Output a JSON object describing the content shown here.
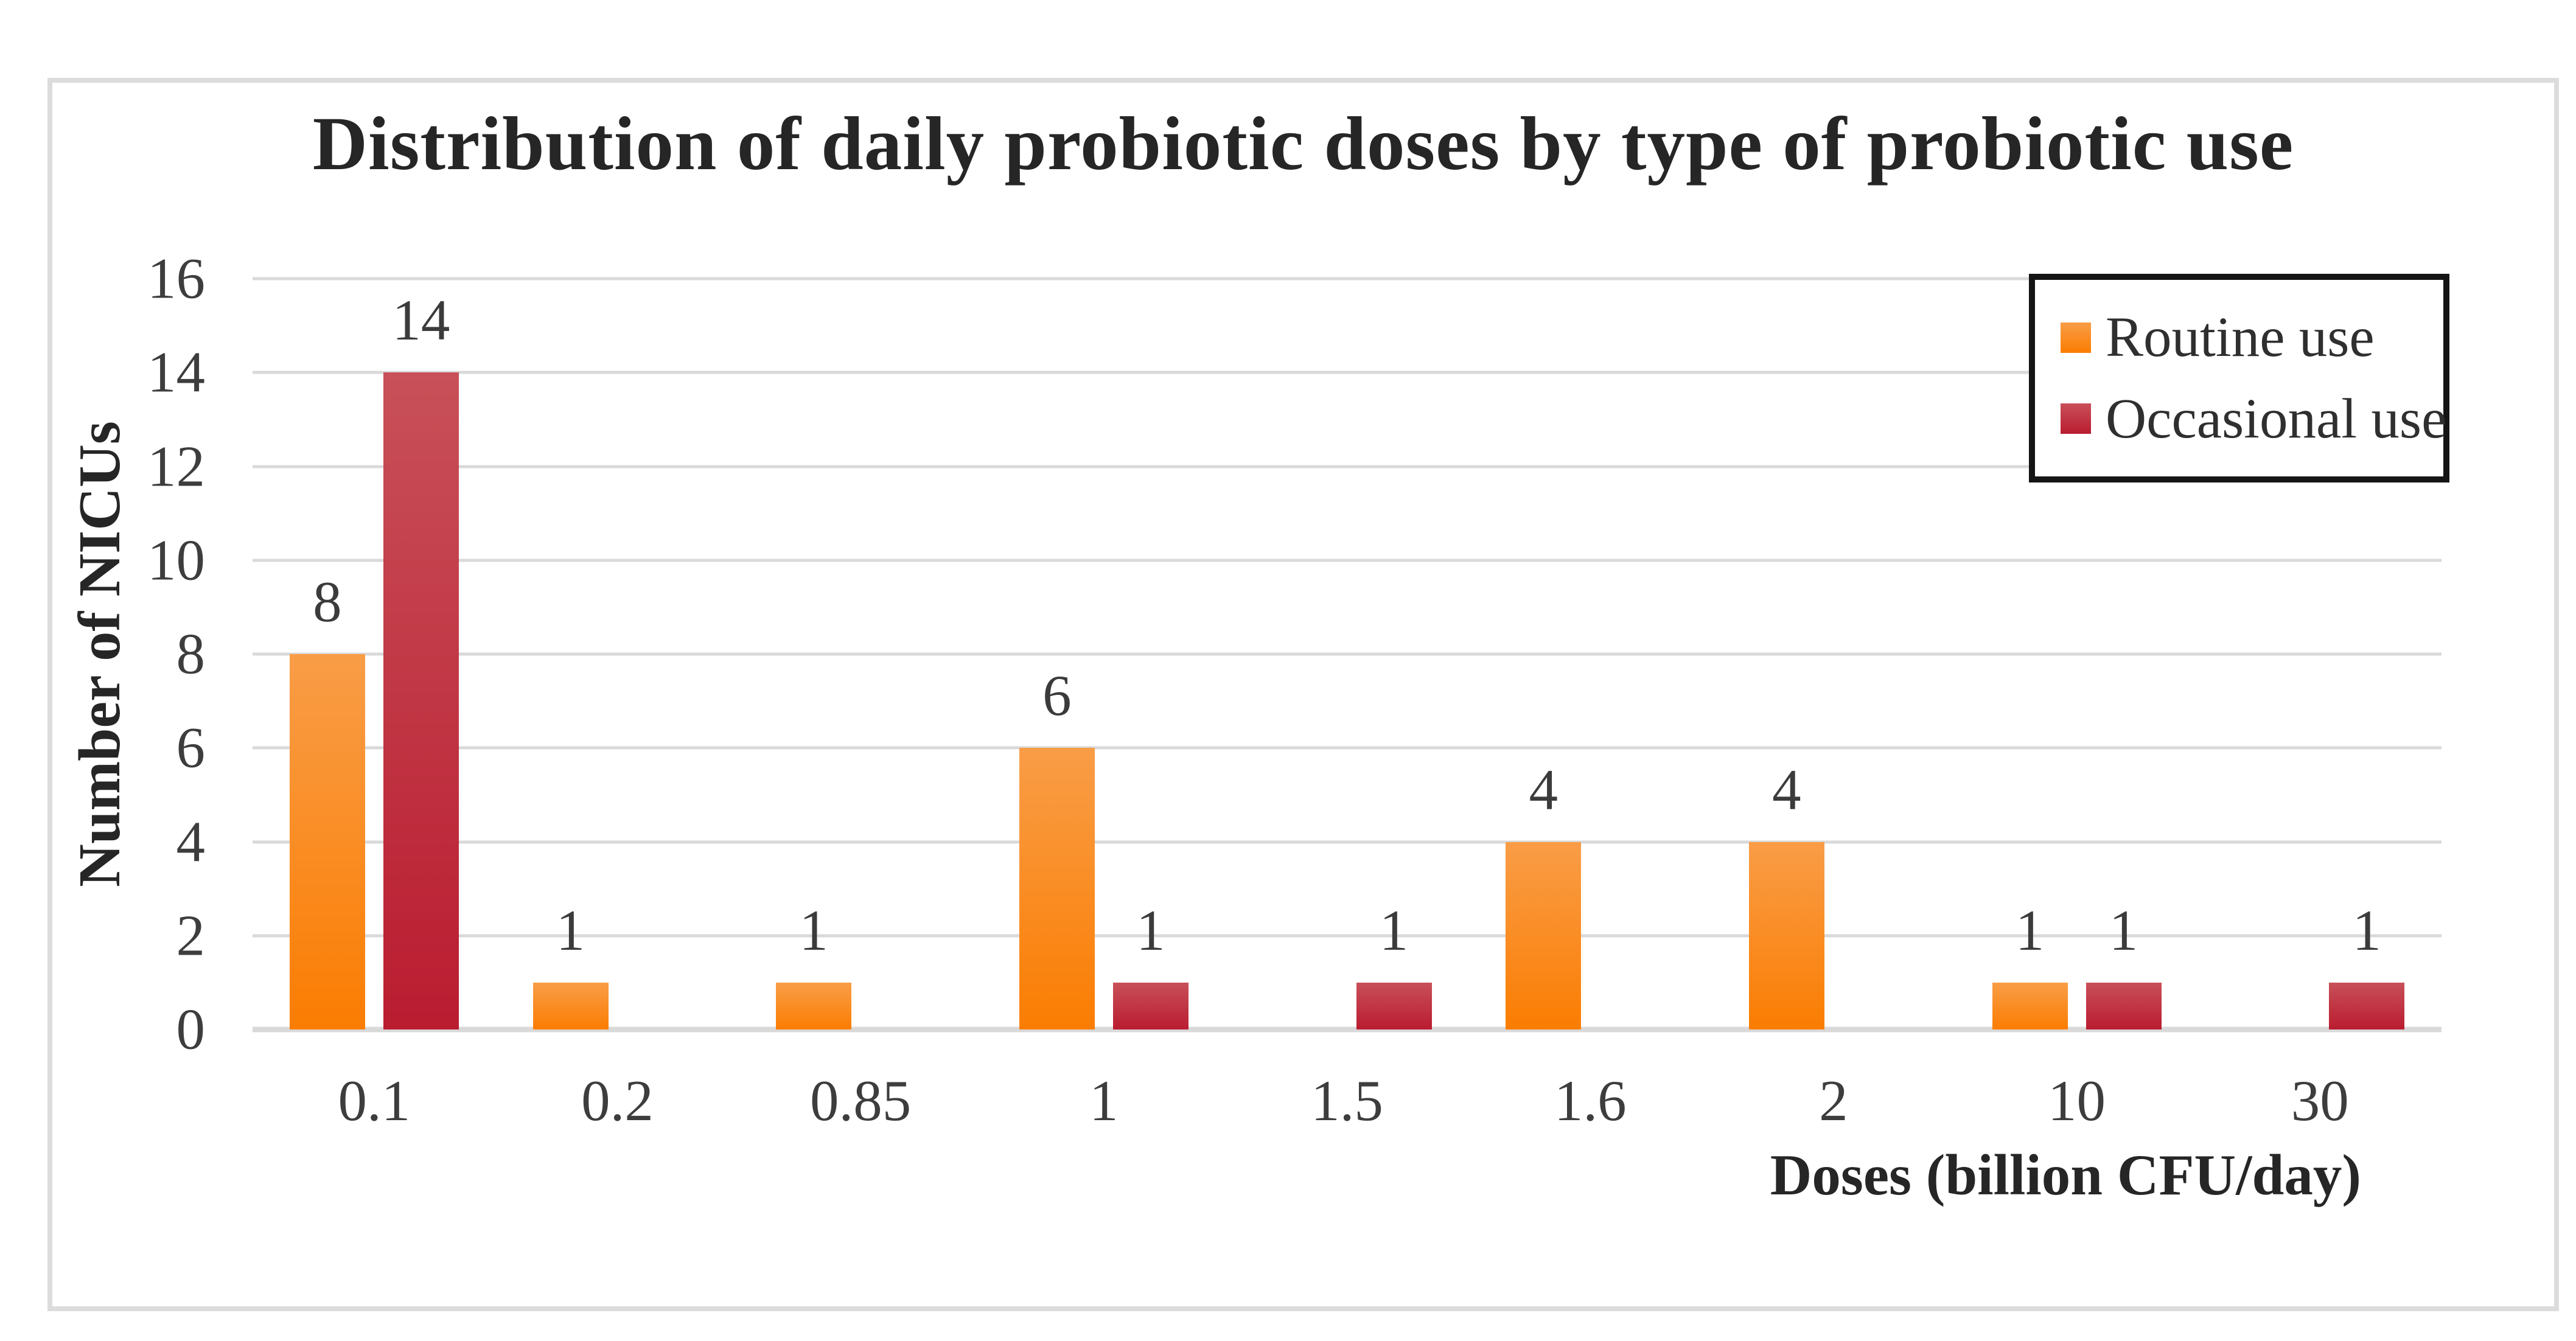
{
  "figure": {
    "background": "#ffffff",
    "border_color": "#dcdcdc"
  },
  "chart_data": {
    "type": "bar",
    "title": "Distribution of daily probiotic doses by type of probiotic use",
    "xlabel": "Doses (billion CFU/day)",
    "ylabel": "Number of NICUs",
    "categories": [
      "0.1",
      "0.2",
      "0.85",
      "1",
      "1.5",
      "1.6",
      "2",
      "10",
      "30"
    ],
    "series": [
      {
        "name": "Routine use",
        "color_top": "#f99d47",
        "color_bottom": "#fa7d02",
        "values": [
          8,
          1,
          1,
          6,
          null,
          4,
          4,
          1,
          null
        ]
      },
      {
        "name": "Occasional use",
        "color_top": "#c85058",
        "color_bottom": "#ba1c30",
        "values": [
          14,
          null,
          null,
          1,
          1,
          null,
          null,
          1,
          1
        ]
      }
    ],
    "ylim": [
      0,
      16
    ],
    "ytick_step": 2,
    "yticks": [
      0,
      2,
      4,
      6,
      8,
      10,
      12,
      14,
      16
    ],
    "grid": true,
    "gridline_color": "#d9d9d9",
    "legend_position": "top-right",
    "bar_value_labels": true
  }
}
